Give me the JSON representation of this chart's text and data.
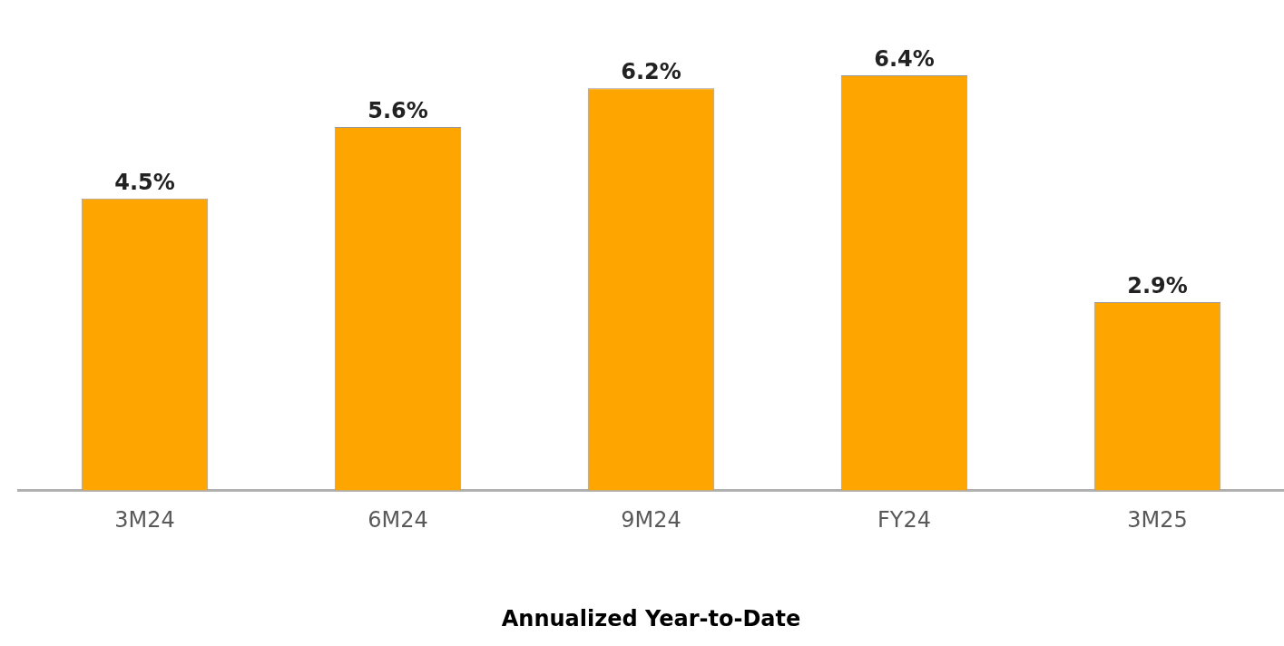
{
  "chart_data": {
    "type": "bar",
    "xlabel": "Annualized Year-to-Date",
    "categories": [
      "3M24",
      "6M24",
      "9M24",
      "FY24",
      "3M25"
    ],
    "values": [
      4.5,
      5.6,
      6.2,
      6.4,
      2.9
    ],
    "color": "#ffa500",
    "value_labels": [
      "4.5%",
      "5.6%",
      "6.2%",
      "6.4%",
      "2.9%"
    ],
    "grid": false,
    "legend": false
  }
}
